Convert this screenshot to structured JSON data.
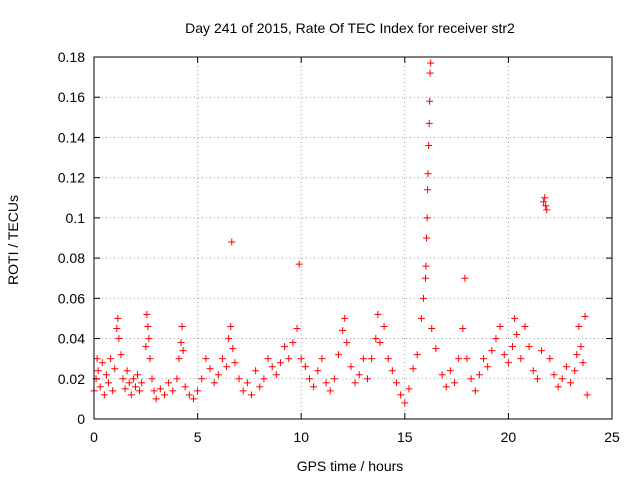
{
  "chart_data": {
    "type": "scatter",
    "title": "Day 241 of 2015, Rate Of TEC Index for receiver str2",
    "xlabel": "GPS time / hours",
    "ylabel": "ROTI / TECUs",
    "xlim": [
      0,
      25
    ],
    "ylim": [
      0,
      0.18
    ],
    "x_ticks": [
      0,
      5,
      10,
      15,
      20,
      25
    ],
    "y_ticks": [
      0,
      0.02,
      0.04,
      0.06,
      0.08,
      0.1,
      0.12,
      0.14,
      0.16,
      0.18
    ],
    "x_tick_labels": [
      "0",
      "5",
      "10",
      "15",
      "20",
      "25"
    ],
    "y_tick_labels": [
      "0",
      "0.02",
      "0.04",
      "0.06",
      "0.08",
      "0.1",
      "0.12",
      "0.14",
      "0.16",
      "0.18"
    ],
    "grid": true,
    "marker": "+",
    "marker_color": "#ff0000",
    "series": [
      {
        "name": "ROTI",
        "points": [
          [
            0.0,
            0.014
          ],
          [
            0.1,
            0.02
          ],
          [
            0.15,
            0.03
          ],
          [
            0.2,
            0.024
          ],
          [
            0.3,
            0.016
          ],
          [
            0.4,
            0.028
          ],
          [
            0.5,
            0.012
          ],
          [
            0.6,
            0.022
          ],
          [
            0.7,
            0.018
          ],
          [
            0.8,
            0.03
          ],
          [
            0.9,
            0.014
          ],
          [
            1.0,
            0.025
          ],
          [
            1.1,
            0.045
          ],
          [
            1.15,
            0.05
          ],
          [
            1.2,
            0.04
          ],
          [
            1.3,
            0.032
          ],
          [
            1.4,
            0.02
          ],
          [
            1.5,
            0.015
          ],
          [
            1.6,
            0.024
          ],
          [
            1.7,
            0.018
          ],
          [
            1.8,
            0.012
          ],
          [
            1.9,
            0.02
          ],
          [
            2.0,
            0.016
          ],
          [
            2.1,
            0.022
          ],
          [
            2.2,
            0.014
          ],
          [
            2.3,
            0.018
          ],
          [
            2.5,
            0.036
          ],
          [
            2.55,
            0.052
          ],
          [
            2.6,
            0.046
          ],
          [
            2.65,
            0.04
          ],
          [
            2.7,
            0.03
          ],
          [
            2.8,
            0.02
          ],
          [
            2.9,
            0.014
          ],
          [
            3.0,
            0.01
          ],
          [
            3.2,
            0.015
          ],
          [
            3.4,
            0.012
          ],
          [
            3.6,
            0.018
          ],
          [
            3.8,
            0.014
          ],
          [
            4.0,
            0.02
          ],
          [
            4.1,
            0.03
          ],
          [
            4.2,
            0.038
          ],
          [
            4.25,
            0.046
          ],
          [
            4.3,
            0.034
          ],
          [
            4.4,
            0.016
          ],
          [
            4.6,
            0.012
          ],
          [
            4.8,
            0.01
          ],
          [
            5.0,
            0.014
          ],
          [
            5.2,
            0.02
          ],
          [
            5.4,
            0.03
          ],
          [
            5.6,
            0.025
          ],
          [
            5.8,
            0.018
          ],
          [
            6.0,
            0.022
          ],
          [
            6.2,
            0.03
          ],
          [
            6.4,
            0.026
          ],
          [
            6.5,
            0.04
          ],
          [
            6.6,
            0.046
          ],
          [
            6.65,
            0.088
          ],
          [
            6.7,
            0.035
          ],
          [
            6.8,
            0.028
          ],
          [
            7.0,
            0.02
          ],
          [
            7.2,
            0.014
          ],
          [
            7.4,
            0.018
          ],
          [
            7.6,
            0.012
          ],
          [
            7.8,
            0.024
          ],
          [
            8.0,
            0.016
          ],
          [
            8.2,
            0.02
          ],
          [
            8.4,
            0.03
          ],
          [
            8.6,
            0.026
          ],
          [
            8.8,
            0.022
          ],
          [
            9.0,
            0.028
          ],
          [
            9.2,
            0.036
          ],
          [
            9.4,
            0.03
          ],
          [
            9.6,
            0.038
          ],
          [
            9.8,
            0.045
          ],
          [
            9.9,
            0.077
          ],
          [
            10.0,
            0.03
          ],
          [
            10.2,
            0.026
          ],
          [
            10.4,
            0.02
          ],
          [
            10.6,
            0.016
          ],
          [
            10.8,
            0.024
          ],
          [
            11.0,
            0.03
          ],
          [
            11.2,
            0.018
          ],
          [
            11.4,
            0.014
          ],
          [
            11.6,
            0.02
          ],
          [
            11.8,
            0.032
          ],
          [
            12.0,
            0.044
          ],
          [
            12.1,
            0.05
          ],
          [
            12.2,
            0.038
          ],
          [
            12.4,
            0.026
          ],
          [
            12.6,
            0.018
          ],
          [
            12.8,
            0.022
          ],
          [
            13.0,
            0.03
          ],
          [
            13.2,
            0.02
          ],
          [
            13.4,
            0.03
          ],
          [
            13.6,
            0.04
          ],
          [
            13.7,
            0.052
          ],
          [
            13.8,
            0.038
          ],
          [
            14.0,
            0.046
          ],
          [
            14.2,
            0.03
          ],
          [
            14.4,
            0.024
          ],
          [
            14.6,
            0.018
          ],
          [
            14.8,
            0.012
          ],
          [
            15.0,
            0.008
          ],
          [
            15.2,
            0.015
          ],
          [
            15.4,
            0.025
          ],
          [
            15.6,
            0.032
          ],
          [
            15.8,
            0.05
          ],
          [
            15.9,
            0.06
          ],
          [
            16.0,
            0.07
          ],
          [
            16.02,
            0.076
          ],
          [
            16.05,
            0.09
          ],
          [
            16.08,
            0.1
          ],
          [
            16.1,
            0.114
          ],
          [
            16.12,
            0.122
          ],
          [
            16.15,
            0.136
          ],
          [
            16.18,
            0.147
          ],
          [
            16.2,
            0.158
          ],
          [
            16.22,
            0.172
          ],
          [
            16.25,
            0.177
          ],
          [
            16.3,
            0.045
          ],
          [
            16.5,
            0.035
          ],
          [
            16.8,
            0.022
          ],
          [
            17.0,
            0.016
          ],
          [
            17.2,
            0.024
          ],
          [
            17.4,
            0.018
          ],
          [
            17.6,
            0.03
          ],
          [
            17.8,
            0.045
          ],
          [
            17.9,
            0.07
          ],
          [
            18.0,
            0.03
          ],
          [
            18.2,
            0.02
          ],
          [
            18.4,
            0.014
          ],
          [
            18.6,
            0.022
          ],
          [
            18.8,
            0.03
          ],
          [
            19.0,
            0.026
          ],
          [
            19.2,
            0.034
          ],
          [
            19.4,
            0.04
          ],
          [
            19.6,
            0.046
          ],
          [
            19.8,
            0.032
          ],
          [
            20.0,
            0.028
          ],
          [
            20.2,
            0.036
          ],
          [
            20.3,
            0.05
          ],
          [
            20.4,
            0.042
          ],
          [
            20.6,
            0.03
          ],
          [
            20.8,
            0.046
          ],
          [
            21.0,
            0.036
          ],
          [
            21.2,
            0.024
          ],
          [
            21.4,
            0.02
          ],
          [
            21.6,
            0.034
          ],
          [
            21.7,
            0.108
          ],
          [
            21.75,
            0.11
          ],
          [
            21.8,
            0.106
          ],
          [
            21.85,
            0.104
          ],
          [
            22.0,
            0.03
          ],
          [
            22.2,
            0.022
          ],
          [
            22.4,
            0.016
          ],
          [
            22.6,
            0.02
          ],
          [
            22.8,
            0.026
          ],
          [
            23.0,
            0.018
          ],
          [
            23.2,
            0.024
          ],
          [
            23.3,
            0.032
          ],
          [
            23.4,
            0.046
          ],
          [
            23.5,
            0.036
          ],
          [
            23.6,
            0.028
          ],
          [
            23.7,
            0.051
          ],
          [
            23.8,
            0.012
          ]
        ]
      }
    ]
  }
}
